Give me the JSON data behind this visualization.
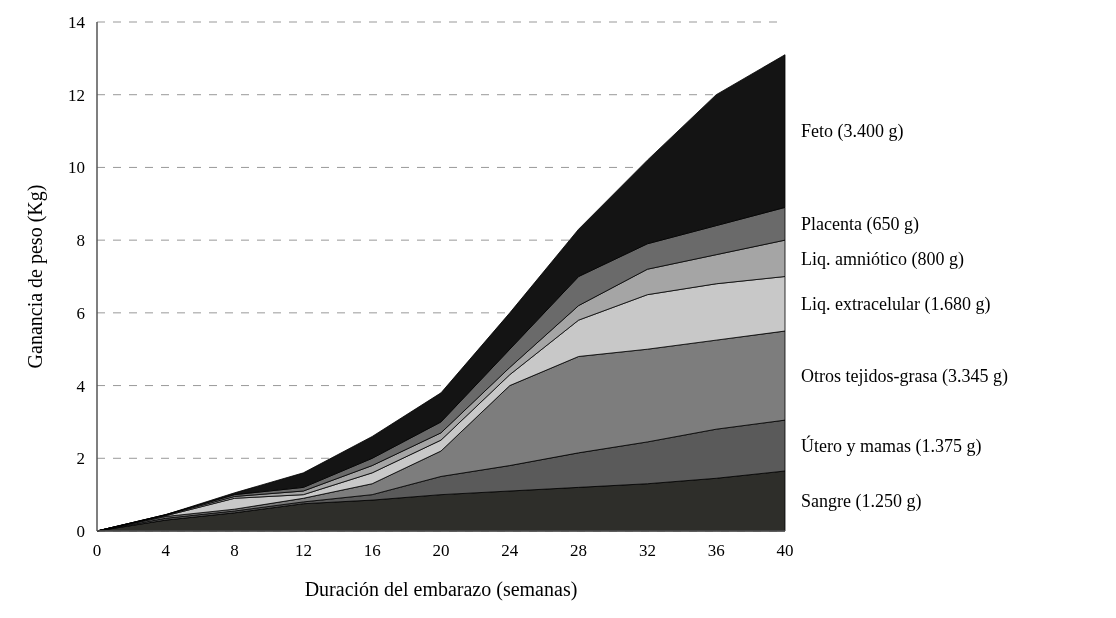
{
  "chart_data": {
    "type": "area",
    "stacked": true,
    "xlabel": "Duración del embarazo (semanas)",
    "ylabel": "Ganancia de peso (Kg)",
    "x": [
      0,
      4,
      8,
      12,
      16,
      20,
      24,
      28,
      32,
      36,
      40
    ],
    "xlim": [
      0,
      40
    ],
    "xticks": [
      0,
      4,
      8,
      12,
      16,
      20,
      24,
      28,
      32,
      36,
      40
    ],
    "ylim": [
      0,
      14
    ],
    "yticks": [
      0,
      2,
      4,
      6,
      8,
      10,
      12,
      14
    ],
    "grid": "y",
    "legend": false,
    "series": [
      {
        "name": "Sangre (1.250 g)",
        "color": "#2e2e2a",
        "values": [
          0,
          0.3,
          0.5,
          0.75,
          0.85,
          1.0,
          1.1,
          1.2,
          1.3,
          1.45,
          1.65
        ]
      },
      {
        "name": "Útero y mamas (1.375 g)",
        "color": "#5a5a5a",
        "values": [
          0,
          0.05,
          0.05,
          0.05,
          0.15,
          0.5,
          0.7,
          0.95,
          1.15,
          1.35,
          1.4
        ]
      },
      {
        "name": "Otros tejidos-grasa (3.345 g)",
        "color": "#7d7d7d",
        "values": [
          0,
          0.05,
          0.05,
          0.1,
          0.3,
          0.7,
          2.2,
          2.65,
          2.55,
          2.45,
          2.45
        ]
      },
      {
        "name": "Liq. extracelular (1.680 g)",
        "color": "#c8c8c8",
        "values": [
          0,
          0.02,
          0.3,
          0.1,
          0.3,
          0.3,
          0.3,
          1.0,
          1.5,
          1.55,
          1.5
        ]
      },
      {
        "name": "Liq. amniótico (800 g)",
        "color": "#a5a5a5",
        "values": [
          0,
          0.02,
          0.05,
          0.1,
          0.2,
          0.2,
          0.2,
          0.4,
          0.7,
          0.8,
          1.0
        ]
      },
      {
        "name": "Placenta (650 g)",
        "color": "#6a6a6a",
        "values": [
          0,
          0.01,
          0.05,
          0.1,
          0.2,
          0.3,
          0.5,
          0.8,
          0.7,
          0.8,
          0.9
        ]
      },
      {
        "name": "Feto (3.400 g)",
        "color": "#141414",
        "values": [
          0,
          0,
          0.05,
          0.4,
          0.6,
          0.8,
          1.0,
          1.3,
          2.3,
          3.6,
          4.2
        ]
      }
    ]
  }
}
